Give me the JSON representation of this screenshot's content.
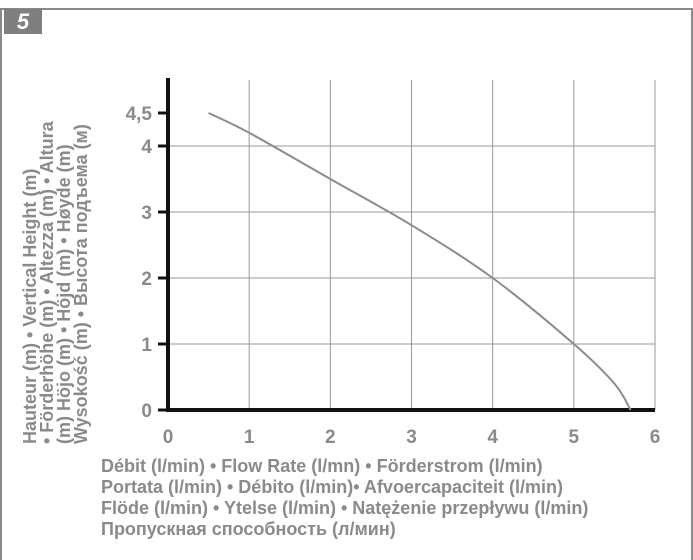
{
  "figure_number": "5",
  "colors": {
    "text": "#8a8a8a",
    "grid": "#9a9a9a",
    "axis": "#111111",
    "curve": "#8c8c8c"
  },
  "chart_data": {
    "type": "line",
    "ylabel_lines": [
      "Hauteur (m) • Vertical Height (m)",
      "• Förderhöhe (m) • Altezza (m) • Altura",
      "(m) Höjo (m) • Höjd (m) • Høyde (m)",
      "Wysokość (m) • Высота подъема (м)"
    ],
    "xlabel_lines": [
      "Débit (l/min) • Flow Rate (l/mn) • Förderstrom (l/min)",
      "Portata (l/min) • Débito (l/min)• Afvoercapaciteit (l/min)",
      "Flöde (l/min) • Ytelse (l/min) • Natężenie przepływu (l/min)",
      "Пропускная способность (л/мин)"
    ],
    "xlim": [
      0,
      6
    ],
    "ylim": [
      0,
      5
    ],
    "xticks": [
      0,
      1,
      2,
      3,
      4,
      5,
      6
    ],
    "xtick_labels": [
      "0",
      "1",
      "2",
      "3",
      "4",
      "5",
      "6"
    ],
    "yticks": [
      0,
      1,
      2,
      3,
      4,
      4.5
    ],
    "ytick_labels": [
      "0",
      "1",
      "2",
      "3",
      "4",
      "4,5"
    ],
    "grid": true,
    "series": [
      {
        "x": [
          0.5,
          1,
          2,
          3,
          4,
          5,
          5.5,
          5.7
        ],
        "y": [
          4.5,
          4.2,
          3.5,
          2.8,
          2.0,
          1.0,
          0.4,
          0
        ]
      }
    ]
  }
}
